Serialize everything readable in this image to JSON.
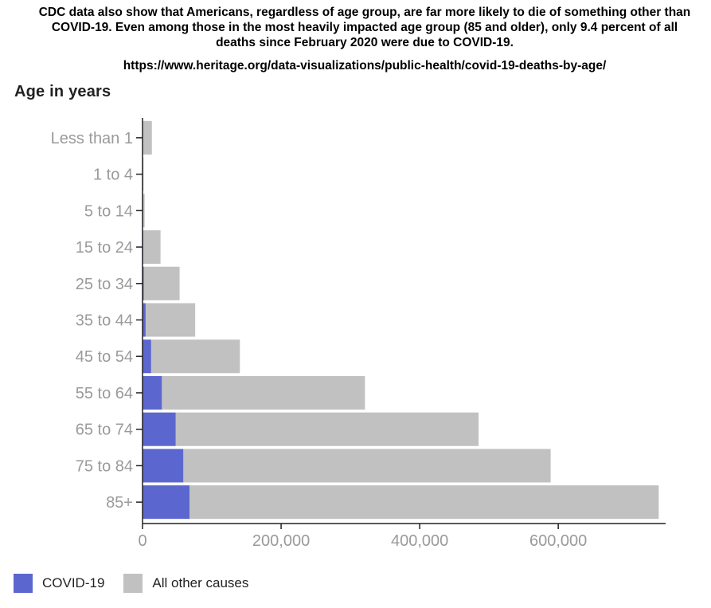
{
  "caption": "CDC data also show that Americans, regardless of age group, are far more likely to die of something other than COVID-19. Even among those in the most heavily impacted age group (85 and older), only 9.4 percent of all deaths since February 2020 were due to COVID-19.",
  "source": "https://www.heritage.org/data-visualizations/public-health/covid-19-deaths-by-age/",
  "colors": {
    "covid": "#5b67cf",
    "other": "#c1c1c1",
    "axis": "#222222",
    "tick_text": "#9a9a9a"
  },
  "chart_data": {
    "type": "bar",
    "orientation": "horizontal",
    "stacked": true,
    "ylabel": "Age in years",
    "categories": [
      "Less than 1",
      "1 to 4",
      "5 to 14",
      "15 to 24",
      "25 to 34",
      "35 to 44",
      "45 to 54",
      "55 to 64",
      "65 to 74",
      "75 to 84",
      "85+"
    ],
    "series": [
      {
        "name": "COVID-19",
        "values": [
          0,
          0,
          0,
          1000,
          2000,
          4500,
          12500,
          28000,
          48000,
          59000,
          68000
        ]
      },
      {
        "name": "All other causes",
        "values": [
          13500,
          1500,
          3000,
          25000,
          51500,
          71500,
          128000,
          293000,
          437000,
          530000,
          677000
        ]
      }
    ],
    "xlim": [
      0,
      740000
    ],
    "xticks": [
      0,
      200000,
      400000,
      600000
    ],
    "xtick_labels": [
      "0",
      "200,000",
      "400,000",
      "600,000"
    ],
    "grid": false,
    "legend_position": "bottom-left"
  }
}
